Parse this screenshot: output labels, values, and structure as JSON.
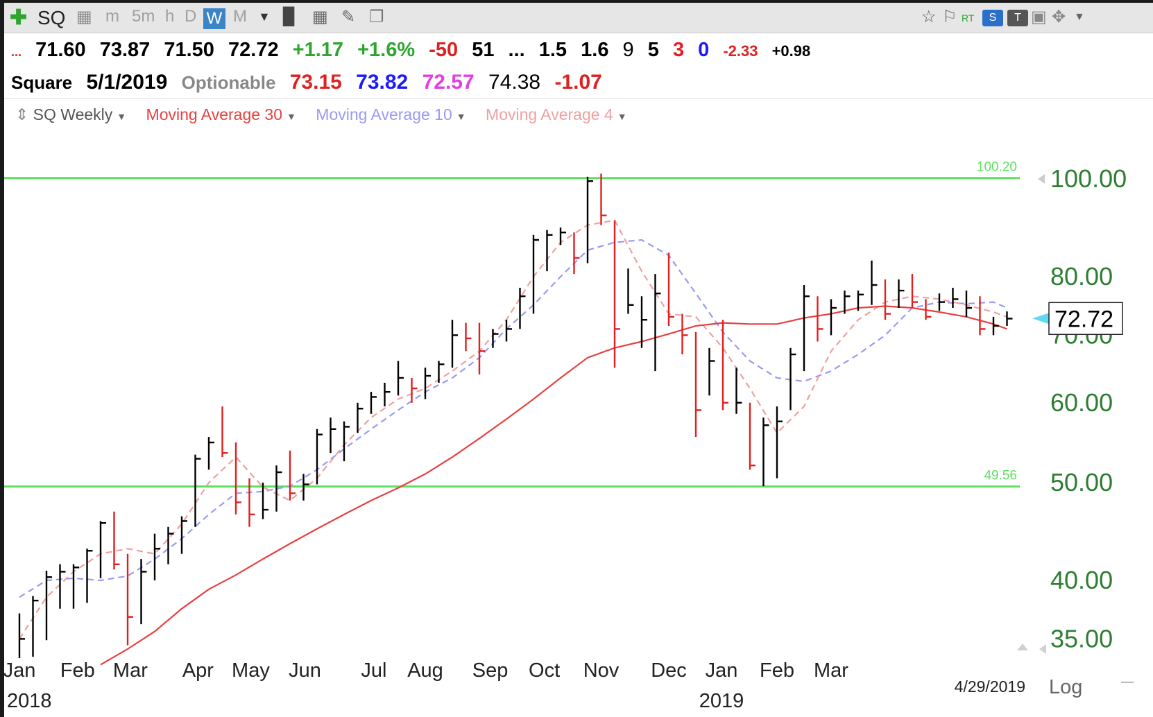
{
  "toolbar": {
    "symbol": "SQ",
    "periods": [
      "m",
      "5m",
      "h",
      "D",
      "W",
      "M"
    ],
    "active_period": "W",
    "right_labels": [
      "RT"
    ]
  },
  "quote": {
    "prefix": "...",
    "open": "71.60",
    "high": "73.87",
    "low": "71.50",
    "close": "72.72",
    "change": "+1.17",
    "change_pct": "+1.6%",
    "f1": "-50",
    "f2": "51",
    "f3": "...",
    "f4": "1.5",
    "f5": "1.6",
    "f6": "9",
    "f7": "5",
    "f8": "3",
    "f9": "0",
    "f10": "-2.33",
    "f11": "+0.98"
  },
  "header": {
    "name": "Square",
    "date": "5/1/2019",
    "status": "Optionable",
    "v1": "73.15",
    "v2": "73.82",
    "v3": "72.57",
    "v4": "74.38",
    "v5": "-1.07"
  },
  "legend": {
    "symbol": "SQ Weekly",
    "ma30": "Moving Average 30",
    "ma10": "Moving Average 10",
    "ma4": "Moving Average 4"
  },
  "colors": {
    "up": "#000000",
    "down": "#e02020",
    "ma30": "#e84040",
    "ma10": "#9a9af2",
    "ma4": "#f0a0a0",
    "hline": "#5ee05e",
    "axis_text": "#2e7d32"
  },
  "chart_data": {
    "type": "ohlc",
    "scale": "log",
    "ylim": [
      33.5,
      105
    ],
    "y_ticks": [
      "100.00",
      "80.00",
      "70.00",
      "60.00",
      "50.00",
      "40.00",
      "35.00"
    ],
    "last_price": "72.72",
    "x_labels": [
      "Jan",
      "Feb",
      "Mar",
      "Apr",
      "May",
      "Jun",
      "Jul",
      "Aug",
      "Sep",
      "Oct",
      "Nov",
      "Dec",
      "Jan",
      "Feb",
      "Mar"
    ],
    "year_labels": [
      "2018",
      "2019"
    ],
    "end_date": "4/29/2019",
    "scale_label": "Log",
    "hlines": [
      {
        "label": "100.20",
        "value": 100.2
      },
      {
        "label": "49.56",
        "value": 49.56
      }
    ],
    "bars": [
      {
        "h": 37.1,
        "l": 33.5,
        "c": 35.0,
        "u": true
      },
      {
        "h": 38.6,
        "l": 33.6,
        "c": 38.2,
        "u": true
      },
      {
        "h": 40.9,
        "l": 34.9,
        "c": 40.3,
        "u": true
      },
      {
        "h": 41.5,
        "l": 37.5,
        "c": 40.8,
        "u": true
      },
      {
        "h": 41.5,
        "l": 37.5,
        "c": 41.2,
        "u": true
      },
      {
        "h": 43.0,
        "l": 38.0,
        "c": 42.8,
        "u": true
      },
      {
        "h": 45.8,
        "l": 40.2,
        "c": 45.6,
        "u": true
      },
      {
        "h": 46.8,
        "l": 41.0,
        "c": 41.5,
        "u": false
      },
      {
        "h": 42.5,
        "l": 34.5,
        "c": 36.8,
        "u": false
      },
      {
        "h": 42.0,
        "l": 36.2,
        "c": 40.8,
        "u": true
      },
      {
        "h": 44.5,
        "l": 40.0,
        "c": 43.0,
        "u": true
      },
      {
        "h": 45.2,
        "l": 41.5,
        "c": 44.5,
        "u": true
      },
      {
        "h": 46.3,
        "l": 42.5,
        "c": 45.8,
        "u": true
      },
      {
        "h": 53.3,
        "l": 45.2,
        "c": 52.8,
        "u": true
      },
      {
        "h": 55.5,
        "l": 51.5,
        "c": 54.8,
        "u": true
      },
      {
        "h": 59.5,
        "l": 53.0,
        "c": 53.5,
        "u": false
      },
      {
        "h": 54.8,
        "l": 46.5,
        "c": 47.8,
        "u": false
      },
      {
        "h": 50.5,
        "l": 45.2,
        "c": 46.5,
        "u": false
      },
      {
        "h": 50.0,
        "l": 46.0,
        "c": 47.0,
        "u": true
      },
      {
        "h": 52.0,
        "l": 46.8,
        "c": 51.2,
        "u": true
      },
      {
        "h": 53.8,
        "l": 48.0,
        "c": 48.8,
        "u": false
      },
      {
        "h": 51.0,
        "l": 48.0,
        "c": 49.8,
        "u": true
      },
      {
        "h": 56.5,
        "l": 49.8,
        "c": 55.8,
        "u": true
      },
      {
        "h": 58.0,
        "l": 53.5,
        "c": 56.5,
        "u": true
      },
      {
        "h": 57.5,
        "l": 52.5,
        "c": 56.8,
        "u": true
      },
      {
        "h": 60.0,
        "l": 56.0,
        "c": 59.2,
        "u": true
      },
      {
        "h": 61.5,
        "l": 58.5,
        "c": 60.8,
        "u": true
      },
      {
        "h": 62.8,
        "l": 59.5,
        "c": 61.5,
        "u": true
      },
      {
        "h": 66.0,
        "l": 61.0,
        "c": 63.5,
        "u": true
      },
      {
        "h": 63.5,
        "l": 60.0,
        "c": 62.0,
        "u": false
      },
      {
        "h": 65.0,
        "l": 60.5,
        "c": 63.8,
        "u": true
      },
      {
        "h": 66.0,
        "l": 62.8,
        "c": 65.5,
        "u": true
      },
      {
        "h": 72.5,
        "l": 65.0,
        "c": 70.0,
        "u": true
      },
      {
        "h": 72.0,
        "l": 67.5,
        "c": 69.5,
        "u": false
      },
      {
        "h": 72.0,
        "l": 64.0,
        "c": 67.5,
        "u": false
      },
      {
        "h": 71.0,
        "l": 68.0,
        "c": 70.2,
        "u": true
      },
      {
        "h": 72.5,
        "l": 69.0,
        "c": 71.0,
        "u": true
      },
      {
        "h": 78.0,
        "l": 71.0,
        "c": 76.5,
        "u": true
      },
      {
        "h": 88.0,
        "l": 73.5,
        "c": 87.0,
        "u": true
      },
      {
        "h": 89.0,
        "l": 81.0,
        "c": 88.0,
        "u": true
      },
      {
        "h": 89.5,
        "l": 86.0,
        "c": 88.5,
        "u": true
      },
      {
        "h": 88.5,
        "l": 80.5,
        "c": 83.5,
        "u": false
      },
      {
        "h": 100.5,
        "l": 82.5,
        "c": 99.5,
        "u": true
      },
      {
        "h": 101.2,
        "l": 90.0,
        "c": 92.0,
        "u": false
      },
      {
        "h": 91.0,
        "l": 65.0,
        "c": 71.0,
        "u": false
      },
      {
        "h": 81.5,
        "l": 73.5,
        "c": 75.0,
        "u": true
      },
      {
        "h": 76.5,
        "l": 68.0,
        "c": 72.5,
        "u": true
      },
      {
        "h": 80.5,
        "l": 64.5,
        "c": 77.0,
        "u": true
      },
      {
        "h": 84.5,
        "l": 71.5,
        "c": 73.0,
        "u": false
      },
      {
        "h": 73.5,
        "l": 67.0,
        "c": 70.0,
        "u": false
      },
      {
        "h": 70.5,
        "l": 55.5,
        "c": 59.0,
        "u": false
      },
      {
        "h": 68.0,
        "l": 61.0,
        "c": 66.0,
        "u": true
      },
      {
        "h": 72.5,
        "l": 59.0,
        "c": 60.0,
        "u": false
      },
      {
        "h": 65.0,
        "l": 58.5,
        "c": 60.0,
        "u": true
      },
      {
        "h": 60.0,
        "l": 51.5,
        "c": 52.0,
        "u": false
      },
      {
        "h": 58.0,
        "l": 49.6,
        "c": 57.0,
        "u": true
      },
      {
        "h": 59.5,
        "l": 50.5,
        "c": 57.5,
        "u": true
      },
      {
        "h": 68.0,
        "l": 59.0,
        "c": 67.0,
        "u": true
      },
      {
        "h": 78.5,
        "l": 64.5,
        "c": 76.5,
        "u": true
      },
      {
        "h": 76.5,
        "l": 69.0,
        "c": 71.0,
        "u": false
      },
      {
        "h": 76.0,
        "l": 70.0,
        "c": 74.5,
        "u": true
      },
      {
        "h": 77.5,
        "l": 73.5,
        "c": 76.5,
        "u": true
      },
      {
        "h": 77.5,
        "l": 74.0,
        "c": 76.8,
        "u": true
      },
      {
        "h": 83.0,
        "l": 75.0,
        "c": 78.5,
        "u": true
      },
      {
        "h": 79.5,
        "l": 72.5,
        "c": 73.5,
        "u": false
      },
      {
        "h": 79.5,
        "l": 74.5,
        "c": 77.5,
        "u": true
      },
      {
        "h": 80.5,
        "l": 74.5,
        "c": 75.5,
        "u": false
      },
      {
        "h": 76.0,
        "l": 72.5,
        "c": 73.0,
        "u": false
      },
      {
        "h": 77.0,
        "l": 74.0,
        "c": 75.5,
        "u": true
      },
      {
        "h": 78.0,
        "l": 74.5,
        "c": 76.0,
        "u": true
      },
      {
        "h": 77.5,
        "l": 73.0,
        "c": 74.5,
        "u": true
      },
      {
        "h": 76.5,
        "l": 70.0,
        "c": 71.0,
        "u": false
      },
      {
        "h": 73.0,
        "l": 70.0,
        "c": 71.5,
        "u": true
      },
      {
        "h": 73.9,
        "l": 71.5,
        "c": 72.7,
        "u": true
      }
    ],
    "ma30": [
      [
        6,
        33.0
      ],
      [
        8,
        34.2
      ],
      [
        10,
        35.6
      ],
      [
        12,
        37.5
      ],
      [
        14,
        39.2
      ],
      [
        16,
        40.5
      ],
      [
        18,
        42.0
      ],
      [
        20,
        43.5
      ],
      [
        22,
        45.0
      ],
      [
        24,
        46.5
      ],
      [
        26,
        48.0
      ],
      [
        28,
        49.4
      ],
      [
        30,
        51.0
      ],
      [
        32,
        53.0
      ],
      [
        34,
        55.3
      ],
      [
        36,
        57.8
      ],
      [
        38,
        60.5
      ],
      [
        40,
        63.5
      ],
      [
        42,
        66.5
      ],
      [
        44,
        68.0
      ],
      [
        46,
        69.0
      ],
      [
        48,
        70.2
      ],
      [
        50,
        71.5
      ],
      [
        52,
        72.0
      ],
      [
        54,
        71.8
      ],
      [
        56,
        71.8
      ],
      [
        58,
        72.8
      ],
      [
        60,
        73.5
      ],
      [
        62,
        74.5
      ],
      [
        64,
        74.8
      ],
      [
        66,
        74.5
      ],
      [
        68,
        73.8
      ],
      [
        70,
        73.0
      ],
      [
        72,
        71.8
      ],
      [
        73,
        71.0
      ]
    ],
    "ma10": [
      [
        0,
        38.5
      ],
      [
        2,
        40.0
      ],
      [
        4,
        40.2
      ],
      [
        6,
        40.0
      ],
      [
        8,
        40.4
      ],
      [
        10,
        42.0
      ],
      [
        12,
        44.0
      ],
      [
        14,
        46.5
      ],
      [
        16,
        48.8
      ],
      [
        18,
        49.0
      ],
      [
        20,
        49.6
      ],
      [
        22,
        51.5
      ],
      [
        24,
        54.0
      ],
      [
        26,
        56.5
      ],
      [
        28,
        59.0
      ],
      [
        30,
        61.5
      ],
      [
        32,
        63.5
      ],
      [
        34,
        66.5
      ],
      [
        36,
        71.0
      ],
      [
        38,
        75.0
      ],
      [
        40,
        80.0
      ],
      [
        42,
        85.0
      ],
      [
        44,
        86.5
      ],
      [
        46,
        87.0
      ],
      [
        48,
        84.0
      ],
      [
        50,
        77.0
      ],
      [
        52,
        70.5
      ],
      [
        54,
        66.0
      ],
      [
        56,
        63.5
      ],
      [
        58,
        63.0
      ],
      [
        60,
        64.5
      ],
      [
        62,
        67.0
      ],
      [
        64,
        70.0
      ],
      [
        66,
        74.5
      ],
      [
        68,
        75.5
      ],
      [
        70,
        75.2
      ],
      [
        72,
        75.5
      ],
      [
        73,
        74.5
      ]
    ],
    "ma4": [
      [
        0,
        35.0
      ],
      [
        2,
        38.5
      ],
      [
        4,
        40.8
      ],
      [
        6,
        42.5
      ],
      [
        8,
        43.0
      ],
      [
        10,
        42.5
      ],
      [
        12,
        45.5
      ],
      [
        14,
        50.0
      ],
      [
        16,
        53.0
      ],
      [
        18,
        49.5
      ],
      [
        20,
        48.0
      ],
      [
        22,
        50.5
      ],
      [
        24,
        54.5
      ],
      [
        26,
        58.0
      ],
      [
        28,
        60.5
      ],
      [
        30,
        62.0
      ],
      [
        32,
        64.5
      ],
      [
        34,
        67.5
      ],
      [
        36,
        72.5
      ],
      [
        38,
        80.0
      ],
      [
        40,
        86.5
      ],
      [
        42,
        90.0
      ],
      [
        44,
        91.0
      ],
      [
        46,
        81.0
      ],
      [
        48,
        73.5
      ],
      [
        50,
        73.0
      ],
      [
        52,
        68.0
      ],
      [
        54,
        62.0
      ],
      [
        56,
        56.0
      ],
      [
        58,
        59.5
      ],
      [
        60,
        67.5
      ],
      [
        62,
        72.5
      ],
      [
        64,
        75.5
      ],
      [
        66,
        76.5
      ],
      [
        68,
        76.0
      ],
      [
        70,
        75.0
      ],
      [
        72,
        73.8
      ],
      [
        73,
        73.0
      ]
    ]
  }
}
